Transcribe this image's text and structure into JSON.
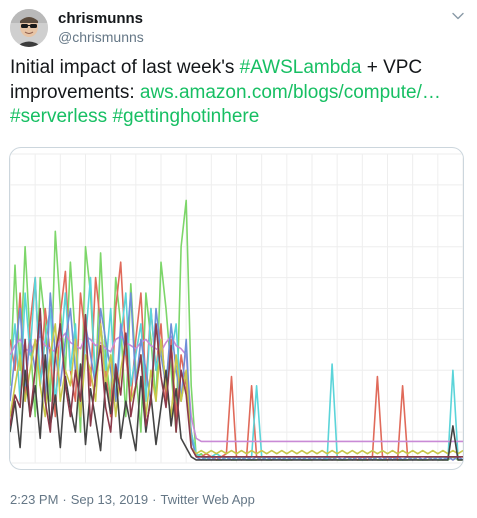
{
  "user": {
    "display_name": "chrismunns",
    "handle": "@chrismunns"
  },
  "tweet": {
    "text_1": "Initial impact of last week's ",
    "hashtag_lambda": "#AWSLambda",
    "text_2": " + VPC improvements: ",
    "link": "aws.amazon.com/blogs/compute/…",
    "hashtag_serverless": "#serverless",
    "hashtag_hot": "#gettinghotinhere"
  },
  "footer": {
    "time": "2:23 PM",
    "date": "Sep 13, 2019",
    "source": "Twitter Web App",
    "separator": "·"
  },
  "colors": {
    "link": "#17bf63",
    "secondary_text": "#657786"
  },
  "icons": {
    "menu": "chevron-down-icon"
  },
  "chart_data": {
    "type": "line",
    "title": "",
    "xlabel": "",
    "ylabel": "",
    "x": [
      0,
      1,
      2,
      3,
      4,
      5,
      6,
      7,
      8,
      9,
      10,
      11,
      12,
      13,
      14,
      15,
      16,
      17,
      18,
      19,
      20,
      21,
      22,
      23,
      24,
      25,
      26,
      27,
      28,
      29,
      30,
      31,
      32,
      33,
      34,
      35,
      36,
      37,
      38,
      39,
      40,
      41,
      42,
      43,
      44,
      45,
      46,
      47,
      48,
      49,
      50,
      51,
      52,
      53,
      54,
      55,
      56,
      57,
      58,
      59,
      60,
      61,
      62,
      63,
      64,
      65,
      66,
      67,
      68,
      69,
      70,
      71,
      72,
      73,
      74,
      75,
      76,
      77,
      78,
      79,
      80,
      81,
      82,
      83,
      84,
      85,
      86,
      87,
      88,
      89,
      90
    ],
    "ylim": [
      0,
      100
    ],
    "grid": true,
    "series": [
      {
        "color": "#7dd66a",
        "values": [
          25,
          64,
          30,
          70,
          40,
          15,
          60,
          45,
          20,
          75,
          50,
          30,
          65,
          40,
          10,
          70,
          55,
          25,
          68,
          35,
          20,
          60,
          45,
          15,
          58,
          30,
          10,
          55,
          40,
          20,
          65,
          50,
          30,
          10,
          70,
          85,
          25,
          2,
          3,
          1,
          2,
          1,
          1,
          2,
          1,
          1,
          2,
          1,
          1,
          1,
          2,
          1,
          1,
          2,
          1,
          1,
          1,
          2,
          1,
          1,
          1,
          2,
          1,
          1,
          2,
          1,
          1,
          1,
          2,
          1,
          1,
          1,
          2,
          1,
          1,
          1,
          2,
          1,
          1,
          1,
          2,
          1,
          1,
          1,
          2,
          1,
          1,
          1,
          2,
          1,
          1
        ]
      },
      {
        "color": "#e06a5a",
        "values": [
          40,
          30,
          55,
          20,
          45,
          60,
          25,
          50,
          35,
          15,
          48,
          62,
          30,
          20,
          55,
          40,
          25,
          60,
          45,
          30,
          15,
          50,
          65,
          35,
          20,
          40,
          55,
          25,
          50,
          30,
          45,
          20,
          40,
          15,
          35,
          25,
          10,
          2,
          2,
          3,
          2,
          1,
          2,
          3,
          28,
          2,
          1,
          2,
          25,
          2,
          1,
          2,
          1,
          2,
          1,
          2,
          1,
          2,
          1,
          2,
          1,
          2,
          1,
          2,
          1,
          2,
          1,
          2,
          2,
          1,
          2,
          1,
          2,
          28,
          2,
          1,
          2,
          1,
          25,
          2,
          1,
          2,
          1,
          2,
          1,
          2,
          1,
          2,
          1,
          2,
          1
        ]
      },
      {
        "color": "#5bd4d9",
        "values": [
          30,
          45,
          20,
          55,
          35,
          60,
          25,
          40,
          50,
          20,
          35,
          55,
          30,
          45,
          15,
          40,
          60,
          25,
          45,
          30,
          50,
          20,
          40,
          55,
          25,
          35,
          45,
          20,
          50,
          30,
          40,
          25,
          35,
          45,
          20,
          30,
          10,
          3,
          2,
          1,
          2,
          3,
          2,
          1,
          2,
          1,
          2,
          1,
          2,
          25,
          2,
          1,
          2,
          1,
          2,
          1,
          2,
          1,
          2,
          1,
          2,
          1,
          2,
          1,
          32,
          2,
          1,
          2,
          1,
          2,
          1,
          2,
          1,
          2,
          1,
          2,
          1,
          2,
          1,
          2,
          1,
          2,
          1,
          2,
          2,
          1,
          2,
          1,
          30,
          2,
          1
        ]
      },
      {
        "color": "#c98ad6",
        "values": [
          35,
          38,
          40,
          37,
          36,
          39,
          41,
          38,
          37,
          36,
          40,
          42,
          39,
          38,
          37,
          41,
          40,
          38,
          39,
          37,
          36,
          40,
          41,
          39,
          38,
          37,
          39,
          40,
          38,
          37,
          36,
          39,
          41,
          38,
          37,
          35,
          15,
          8,
          7,
          7,
          7,
          7,
          7,
          7,
          7,
          7,
          7,
          7,
          7,
          7,
          7,
          7,
          7,
          7,
          7,
          7,
          7,
          7,
          7,
          7,
          7,
          7,
          7,
          7,
          7,
          7,
          7,
          7,
          7,
          7,
          7,
          7,
          7,
          7,
          7,
          7,
          7,
          7,
          7,
          7,
          7,
          7,
          7,
          7,
          7,
          7,
          7,
          7,
          7,
          7,
          7
        ]
      },
      {
        "color": "#6f8fd8",
        "values": [
          20,
          35,
          50,
          25,
          40,
          30,
          45,
          20,
          55,
          35,
          25,
          40,
          50,
          30,
          20,
          45,
          35,
          25,
          50,
          40,
          30,
          20,
          45,
          35,
          55,
          25,
          40,
          30,
          20,
          50,
          35,
          25,
          45,
          30,
          20,
          40,
          8,
          2,
          1,
          2,
          1,
          2,
          1,
          2,
          1,
          2,
          1,
          2,
          1,
          2,
          1,
          2,
          1,
          2,
          1,
          2,
          1,
          2,
          1,
          2,
          1,
          2,
          1,
          2,
          1,
          2,
          1,
          2,
          1,
          2,
          1,
          2,
          1,
          2,
          1,
          2,
          1,
          2,
          1,
          2,
          1,
          2,
          1,
          2,
          1,
          2,
          1,
          2,
          1,
          2,
          1
        ]
      },
      {
        "color": "#c8c84a",
        "values": [
          15,
          25,
          35,
          20,
          30,
          40,
          25,
          15,
          35,
          45,
          20,
          30,
          25,
          40,
          15,
          35,
          30,
          20,
          45,
          25,
          35,
          15,
          30,
          40,
          20,
          25,
          35,
          15,
          30,
          20,
          40,
          25,
          15,
          35,
          20,
          30,
          5,
          3,
          4,
          3,
          4,
          3,
          4,
          3,
          4,
          3,
          4,
          3,
          4,
          3,
          4,
          3,
          4,
          3,
          4,
          3,
          4,
          3,
          4,
          3,
          4,
          3,
          4,
          3,
          4,
          3,
          4,
          3,
          4,
          3,
          4,
          3,
          4,
          3,
          4,
          3,
          4,
          3,
          4,
          3,
          4,
          3,
          4,
          3,
          4,
          3,
          4,
          3,
          4,
          3,
          4
        ]
      },
      {
        "color": "#444444",
        "values": [
          10,
          20,
          5,
          30,
          15,
          25,
          8,
          35,
          12,
          22,
          5,
          28,
          18,
          10,
          32,
          6,
          24,
          14,
          4,
          26,
          16,
          30,
          8,
          20,
          12,
          4,
          28,
          10,
          22,
          6,
          18,
          30,
          12,
          24,
          8,
          5,
          2,
          1,
          1,
          1,
          1,
          1,
          1,
          1,
          1,
          1,
          1,
          1,
          1,
          1,
          1,
          1,
          1,
          1,
          1,
          1,
          1,
          1,
          1,
          1,
          1,
          1,
          1,
          1,
          1,
          1,
          1,
          1,
          1,
          1,
          1,
          1,
          1,
          1,
          1,
          1,
          1,
          1,
          1,
          1,
          1,
          1,
          1,
          1,
          1,
          1,
          1,
          1,
          12,
          1,
          1
        ]
      },
      {
        "color": "#8b3a4a",
        "values": [
          12,
          22,
          18,
          40,
          15,
          30,
          50,
          20,
          10,
          35,
          45,
          25,
          15,
          30,
          20,
          48,
          12,
          28,
          38,
          18,
          10,
          32,
          22,
          42,
          15,
          25,
          35,
          12,
          20,
          45,
          28,
          18,
          38,
          10,
          30,
          22,
          5,
          2,
          2,
          2,
          2,
          2,
          2,
          2,
          2,
          2,
          2,
          2,
          2,
          2,
          2,
          2,
          2,
          2,
          2,
          2,
          2,
          2,
          2,
          2,
          2,
          2,
          2,
          2,
          2,
          2,
          2,
          2,
          2,
          2,
          2,
          2,
          2,
          2,
          2,
          2,
          2,
          2,
          2,
          2,
          2,
          2,
          2,
          2,
          2,
          2,
          2,
          2,
          2,
          2,
          2
        ]
      }
    ]
  }
}
